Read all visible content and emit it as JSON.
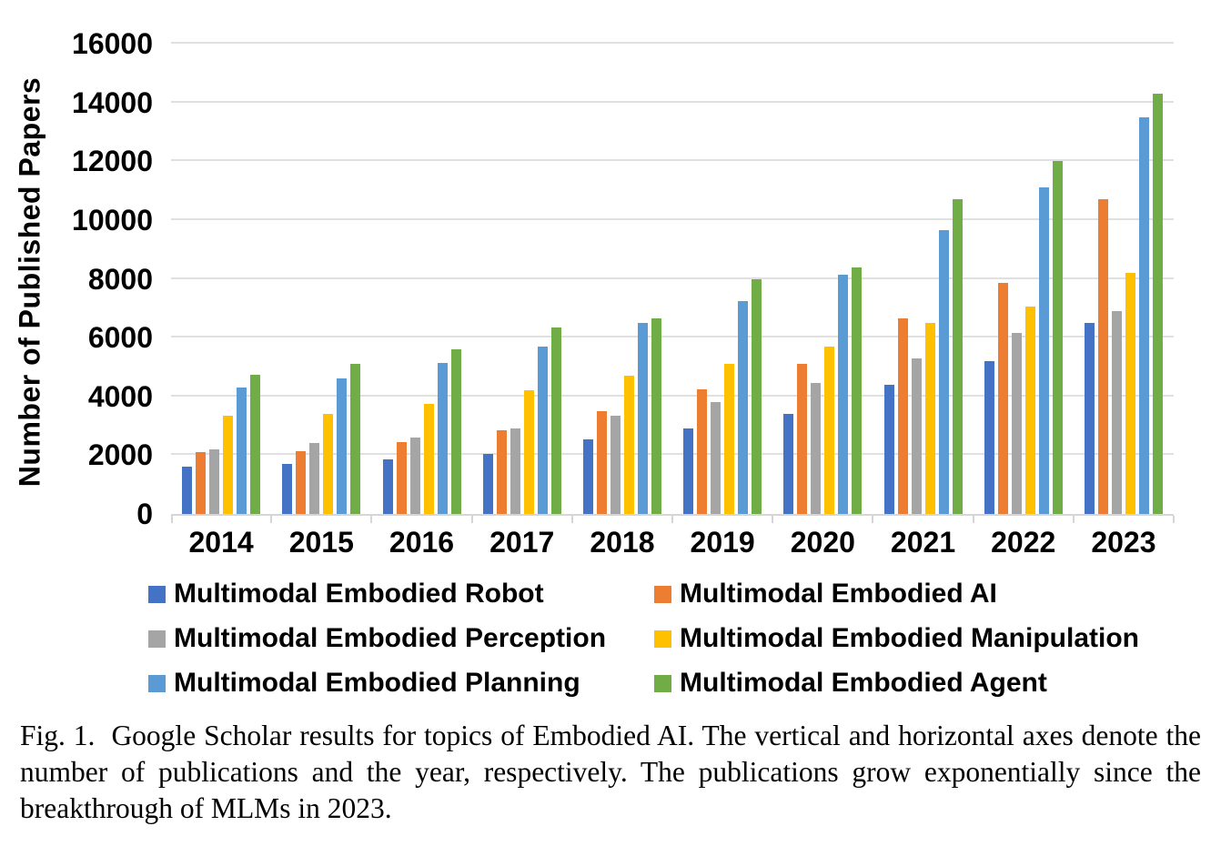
{
  "chart_data": {
    "type": "bar",
    "title": "",
    "xlabel": "",
    "ylabel": "Number of Published Papers",
    "ylim": [
      0,
      16000
    ],
    "ytick_step": 2000,
    "ytick_labels": [
      "0",
      "2000",
      "4000",
      "6000",
      "8000",
      "10000",
      "12000",
      "14000",
      "16000"
    ],
    "grid": true,
    "legend_position": "bottom",
    "categories": [
      "2014",
      "2015",
      "2016",
      "2017",
      "2018",
      "2019",
      "2020",
      "2021",
      "2022",
      "2023"
    ],
    "series": [
      {
        "name": "Multimodal Embodied Robot",
        "color": "#4472C4",
        "values": [
          1600,
          1700,
          1850,
          2050,
          2550,
          2900,
          3400,
          4400,
          5200,
          6500
        ]
      },
      {
        "name": "Multimodal Embodied AI",
        "color": "#ED7D31",
        "values": [
          2100,
          2150,
          2450,
          2850,
          3500,
          4250,
          5100,
          6650,
          7850,
          10700
        ]
      },
      {
        "name": "Multimodal Embodied Perception",
        "color": "#A5A5A5",
        "values": [
          2200,
          2400,
          2600,
          2900,
          3350,
          3800,
          4450,
          5300,
          6150,
          6900
        ]
      },
      {
        "name": "Multimodal Embodied Manipulation",
        "color": "#FFC000",
        "values": [
          3350,
          3400,
          3750,
          4200,
          4700,
          5100,
          5700,
          6500,
          7050,
          8200
        ]
      },
      {
        "name": "Multimodal Embodied Planning",
        "color": "#5B9BD5",
        "values": [
          4300,
          4600,
          5150,
          5700,
          6500,
          7250,
          8150,
          9650,
          11100,
          13500
        ]
      },
      {
        "name": "Multimodal Embodied Agent",
        "color": "#70AD47",
        "values": [
          4750,
          5100,
          5600,
          6350,
          6650,
          8000,
          8400,
          10700,
          12000,
          14300
        ]
      }
    ]
  },
  "caption": {
    "label": "Fig. 1.",
    "text": "Google Scholar results for topics of Embodied AI. The vertical and horizontal axes denote the number of publications and the year, respectively. The publications grow exponentially since the breakthrough of MLMs in 2023."
  }
}
